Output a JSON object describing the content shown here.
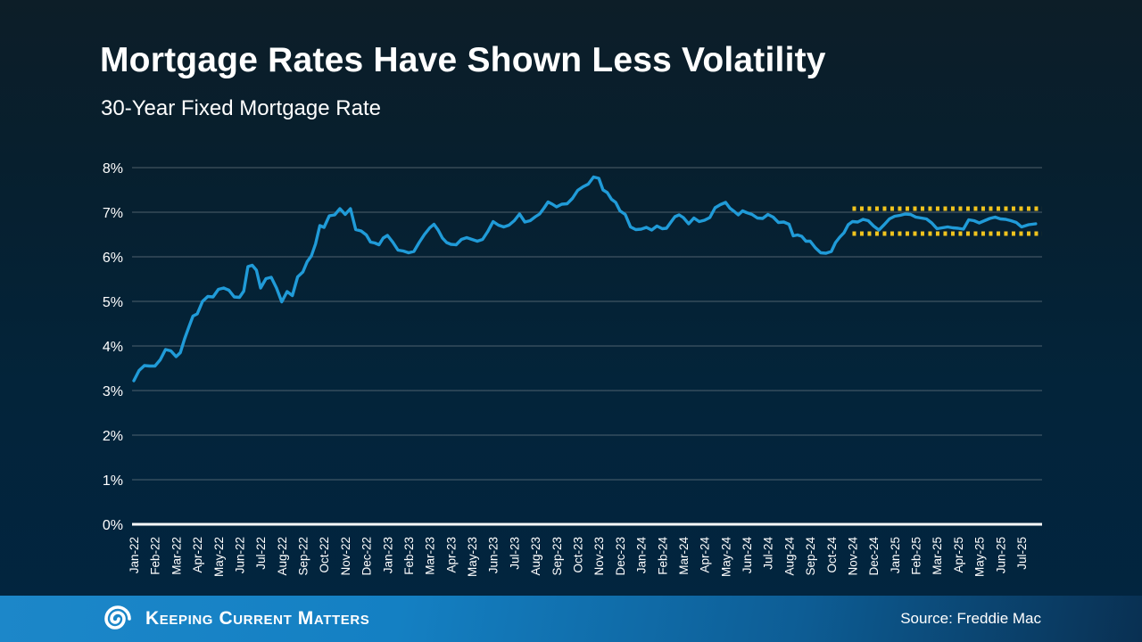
{
  "chart_data": {
    "type": "line",
    "title": "Mortgage Rates Have Shown Less Volatility",
    "subtitle": "30-Year Fixed Mortgage Rate",
    "series_name": "30-Year Fixed Mortgage Rate (weekly, %)",
    "ylim": [
      0,
      8
    ],
    "grid": true,
    "y_ticks": [
      "0%",
      "1%",
      "2%",
      "3%",
      "4%",
      "5%",
      "6%",
      "7%",
      "8%"
    ],
    "months": [
      {
        "label": "Jan-22",
        "weeks": [
          3.22,
          3.45,
          3.56,
          3.55
        ]
      },
      {
        "label": "Feb-22",
        "weeks": [
          3.55,
          3.69,
          3.92,
          3.89
        ]
      },
      {
        "label": "Mar-22",
        "weeks": [
          3.76,
          3.85,
          4.16,
          4.42,
          4.67
        ]
      },
      {
        "label": "Apr-22",
        "weeks": [
          4.72,
          5.0,
          5.11,
          5.1
        ]
      },
      {
        "label": "May-22",
        "weeks": [
          5.27,
          5.3,
          5.25,
          5.1
        ]
      },
      {
        "label": "Jun-22",
        "weeks": [
          5.09,
          5.23,
          5.78,
          5.81,
          5.7
        ]
      },
      {
        "label": "Jul-22",
        "weeks": [
          5.3,
          5.51,
          5.54,
          5.3
        ]
      },
      {
        "label": "Aug-22",
        "weeks": [
          4.99,
          5.22,
          5.13,
          5.55
        ]
      },
      {
        "label": "Sep-22",
        "weeks": [
          5.66,
          5.89,
          6.02,
          6.29,
          6.7
        ]
      },
      {
        "label": "Oct-22",
        "weeks": [
          6.66,
          6.92,
          6.94,
          7.08
        ]
      },
      {
        "label": "Nov-22",
        "weeks": [
          6.95,
          7.08,
          6.61,
          6.58
        ]
      },
      {
        "label": "Dec-22",
        "weeks": [
          6.49,
          6.33,
          6.31,
          6.27,
          6.42
        ]
      },
      {
        "label": "Jan-23",
        "weeks": [
          6.48,
          6.33,
          6.15,
          6.13
        ]
      },
      {
        "label": "Feb-23",
        "weeks": [
          6.09,
          6.12,
          6.32,
          6.5
        ]
      },
      {
        "label": "Mar-23",
        "weeks": [
          6.65,
          6.73,
          6.6,
          6.42,
          6.32
        ]
      },
      {
        "label": "Apr-23",
        "weeks": [
          6.28,
          6.27,
          6.39,
          6.43
        ]
      },
      {
        "label": "May-23",
        "weeks": [
          6.39,
          6.35,
          6.39,
          6.57
        ]
      },
      {
        "label": "Jun-23",
        "weeks": [
          6.79,
          6.71,
          6.67,
          6.71
        ]
      },
      {
        "label": "Jul-23",
        "weeks": [
          6.81,
          6.96,
          6.78,
          6.81
        ]
      },
      {
        "label": "Aug-23",
        "weeks": [
          6.9,
          6.96,
          7.09,
          7.23,
          7.18
        ]
      },
      {
        "label": "Sep-23",
        "weeks": [
          7.12,
          7.18,
          7.19,
          7.31
        ]
      },
      {
        "label": "Oct-23",
        "weeks": [
          7.49,
          7.57,
          7.63,
          7.79
        ]
      },
      {
        "label": "Nov-23",
        "weeks": [
          7.76,
          7.5,
          7.44,
          7.29,
          7.22
        ]
      },
      {
        "label": "Dec-23",
        "weeks": [
          7.03,
          6.95,
          6.67,
          6.61
        ]
      },
      {
        "label": "Jan-24",
        "weeks": [
          6.62,
          6.66,
          6.6,
          6.69
        ]
      },
      {
        "label": "Feb-24",
        "weeks": [
          6.63,
          6.64,
          6.77,
          6.9,
          6.94
        ]
      },
      {
        "label": "Mar-24",
        "weeks": [
          6.88,
          6.74,
          6.87,
          6.79
        ]
      },
      {
        "label": "Apr-24",
        "weeks": [
          6.82,
          6.88,
          7.1,
          7.17
        ]
      },
      {
        "label": "May-24",
        "weeks": [
          7.22,
          7.09,
          7.02,
          6.94,
          7.03
        ]
      },
      {
        "label": "Jun-24",
        "weeks": [
          6.99,
          6.95,
          6.87,
          6.86
        ]
      },
      {
        "label": "Jul-24",
        "weeks": [
          6.95,
          6.89,
          6.77,
          6.78
        ]
      },
      {
        "label": "Aug-24",
        "weeks": [
          6.73,
          6.47,
          6.49,
          6.46,
          6.35
        ]
      },
      {
        "label": "Sep-24",
        "weeks": [
          6.35,
          6.2,
          6.09,
          6.08
        ]
      },
      {
        "label": "Oct-24",
        "weeks": [
          6.12,
          6.32,
          6.44,
          6.54,
          6.72
        ]
      },
      {
        "label": "Nov-24",
        "weeks": [
          6.79,
          6.78,
          6.84,
          6.81
        ]
      },
      {
        "label": "Dec-24",
        "weeks": [
          6.69,
          6.6,
          6.72,
          6.85
        ]
      },
      {
        "label": "Jan-25",
        "weeks": [
          6.91,
          6.93,
          6.96,
          6.95
        ]
      },
      {
        "label": "Feb-25",
        "weeks": [
          6.89,
          6.87,
          6.85,
          6.76
        ]
      },
      {
        "label": "Mar-25",
        "weeks": [
          6.63,
          6.65,
          6.67,
          6.65
        ]
      },
      {
        "label": "Apr-25",
        "weeks": [
          6.64,
          6.62,
          6.83,
          6.81
        ]
      },
      {
        "label": "May-25",
        "weeks": [
          6.76,
          6.81,
          6.86,
          6.89
        ]
      },
      {
        "label": "Jun-25",
        "weeks": [
          6.85,
          6.84,
          6.81,
          6.77
        ]
      },
      {
        "label": "Jul-25",
        "weeks": [
          6.67,
          6.72,
          6.74
        ]
      }
    ],
    "annotation_band": {
      "start_month": "Nov-24",
      "upper": 7.08,
      "lower": 6.52,
      "style": "dotted"
    },
    "legend_position": "none"
  },
  "colors": {
    "line": "#209bd8",
    "band": "#f0c41e",
    "grid": "#8b949b",
    "axis": "#ffffff",
    "text": "#ffffff"
  },
  "footer": {
    "brand": "Keeping Current Matters",
    "source": "Source: Freddie Mac"
  }
}
